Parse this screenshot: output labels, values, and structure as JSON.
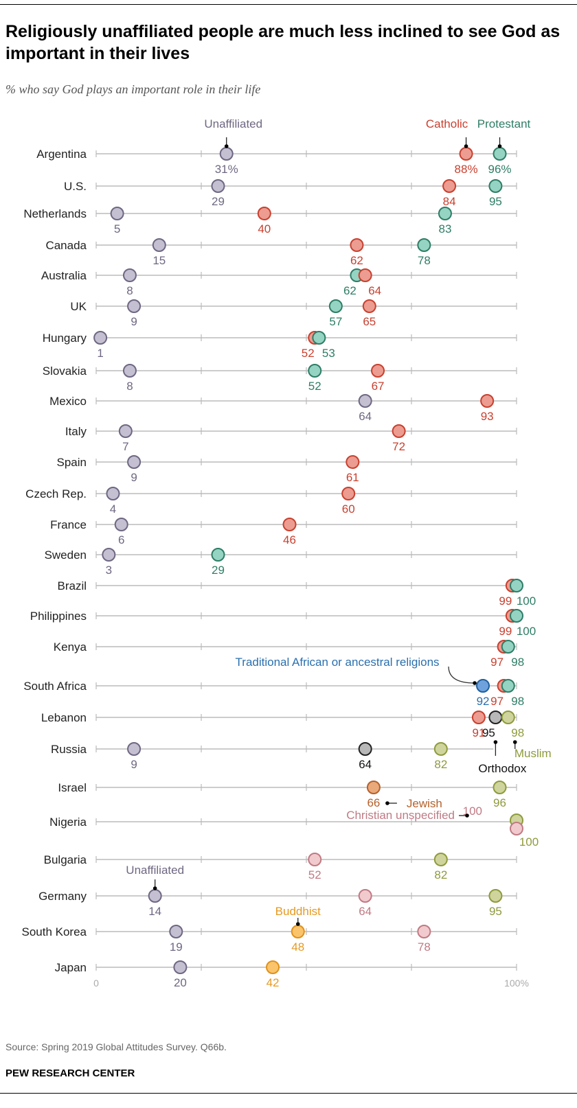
{
  "title": "Religiously unaffiliated people are much less inclined to see God as important in their lives",
  "subtitle": "% who say God plays an important role in their life",
  "source": "Source: Spring 2019 Global Attitudes Survey. Q66b.",
  "organization": "PEW RESEARCH CENTER",
  "chart_data": {
    "type": "scatter",
    "subtype": "dot-plot",
    "xlim": [
      0,
      100
    ],
    "tick_labels": [
      "0",
      "100%"
    ],
    "ticks": [
      0,
      25,
      50,
      75,
      100
    ],
    "grid": false,
    "series_styles": {
      "Unaffiliated": {
        "fill": "#c4bfd1",
        "stroke": "#6f6782",
        "text": "#6f6782"
      },
      "Catholic": {
        "fill": "#ec9c90",
        "stroke": "#c8402f",
        "text": "#c8402f"
      },
      "Protestant": {
        "fill": "#95d3c2",
        "stroke": "#2e7d66",
        "text": "#2e7d66"
      },
      "Traditional African or ancestral religions": {
        "fill": "#6fa2dc",
        "stroke": "#1f5f9e",
        "text": "#2a6fae"
      },
      "Orthodox": {
        "fill": "#b8b8b8",
        "stroke": "#222222",
        "text": "#111111"
      },
      "Muslim": {
        "fill": "#cfd49d",
        "stroke": "#8f9a3c",
        "text": "#8f9a3c"
      },
      "Jewish": {
        "fill": "#e9a97a",
        "stroke": "#b5612c",
        "text": "#b5612c"
      },
      "Christian unspecified": {
        "fill": "#f1cace",
        "stroke": "#c07a84",
        "text": "#c07a84"
      },
      "Buddhist": {
        "fill": "#f9c46c",
        "stroke": "#e0911a",
        "text": "#e69a22"
      }
    },
    "rows": [
      {
        "country": "Argentina",
        "points": [
          {
            "series": "Unaffiliated",
            "value": 31,
            "label": "31%"
          },
          {
            "series": "Catholic",
            "value": 88,
            "label": "88%"
          },
          {
            "series": "Protestant",
            "value": 96,
            "label": "96%"
          }
        ]
      },
      {
        "country": "U.S.",
        "points": [
          {
            "series": "Unaffiliated",
            "value": 29
          },
          {
            "series": "Catholic",
            "value": 84
          },
          {
            "series": "Protestant",
            "value": 95
          }
        ]
      },
      {
        "country": "Netherlands",
        "points": [
          {
            "series": "Unaffiliated",
            "value": 5
          },
          {
            "series": "Catholic",
            "value": 40
          },
          {
            "series": "Protestant",
            "value": 83
          }
        ]
      },
      {
        "country": "Canada",
        "points": [
          {
            "series": "Unaffiliated",
            "value": 15
          },
          {
            "series": "Catholic",
            "value": 62
          },
          {
            "series": "Protestant",
            "value": 78
          }
        ]
      },
      {
        "country": "Australia",
        "points": [
          {
            "series": "Unaffiliated",
            "value": 8
          },
          {
            "series": "Protestant",
            "value": 62
          },
          {
            "series": "Catholic",
            "value": 64
          }
        ]
      },
      {
        "country": "UK",
        "points": [
          {
            "series": "Unaffiliated",
            "value": 9
          },
          {
            "series": "Protestant",
            "value": 57
          },
          {
            "series": "Catholic",
            "value": 65
          }
        ]
      },
      {
        "country": "Hungary",
        "points": [
          {
            "series": "Unaffiliated",
            "value": 1
          },
          {
            "series": "Catholic",
            "value": 52
          },
          {
            "series": "Protestant",
            "value": 53
          }
        ]
      },
      {
        "country": "Slovakia",
        "points": [
          {
            "series": "Unaffiliated",
            "value": 8
          },
          {
            "series": "Protestant",
            "value": 52
          },
          {
            "series": "Catholic",
            "value": 67
          }
        ]
      },
      {
        "country": "Mexico",
        "points": [
          {
            "series": "Unaffiliated",
            "value": 64
          },
          {
            "series": "Catholic",
            "value": 93
          }
        ]
      },
      {
        "country": "Italy",
        "points": [
          {
            "series": "Unaffiliated",
            "value": 7
          },
          {
            "series": "Catholic",
            "value": 72
          }
        ]
      },
      {
        "country": "Spain",
        "points": [
          {
            "series": "Unaffiliated",
            "value": 9
          },
          {
            "series": "Catholic",
            "value": 61
          }
        ]
      },
      {
        "country": "Czech Rep.",
        "points": [
          {
            "series": "Unaffiliated",
            "value": 4
          },
          {
            "series": "Catholic",
            "value": 60
          }
        ]
      },
      {
        "country": "France",
        "points": [
          {
            "series": "Unaffiliated",
            "value": 6
          },
          {
            "series": "Catholic",
            "value": 46
          }
        ]
      },
      {
        "country": "Sweden",
        "points": [
          {
            "series": "Unaffiliated",
            "value": 3
          },
          {
            "series": "Protestant",
            "value": 29
          }
        ]
      },
      {
        "country": "Brazil",
        "points": [
          {
            "series": "Catholic",
            "value": 99
          },
          {
            "series": "Protestant",
            "value": 100
          }
        ]
      },
      {
        "country": "Philippines",
        "points": [
          {
            "series": "Catholic",
            "value": 99
          },
          {
            "series": "Protestant",
            "value": 100
          }
        ]
      },
      {
        "country": "Kenya",
        "points": [
          {
            "series": "Catholic",
            "value": 97
          },
          {
            "series": "Protestant",
            "value": 98
          }
        ]
      },
      {
        "country": "South Africa",
        "points": [
          {
            "series": "Traditional African or ancestral religions",
            "value": 92
          },
          {
            "series": "Catholic",
            "value": 97
          },
          {
            "series": "Protestant",
            "value": 98
          }
        ]
      },
      {
        "country": "Lebanon",
        "points": [
          {
            "series": "Catholic",
            "value": 91
          },
          {
            "series": "Orthodox",
            "value": 95
          },
          {
            "series": "Muslim",
            "value": 98
          }
        ]
      },
      {
        "country": "Russia",
        "points": [
          {
            "series": "Unaffiliated",
            "value": 9
          },
          {
            "series": "Orthodox",
            "value": 64
          },
          {
            "series": "Muslim",
            "value": 82
          }
        ]
      },
      {
        "country": "Israel",
        "points": [
          {
            "series": "Jewish",
            "value": 66
          },
          {
            "series": "Muslim",
            "value": 96
          }
        ]
      },
      {
        "country": "Nigeria",
        "points": [
          {
            "series": "Muslim",
            "value": 100
          },
          {
            "series": "Christian unspecified",
            "value": 100
          }
        ]
      },
      {
        "country": "Bulgaria",
        "points": [
          {
            "series": "Christian unspecified",
            "value": 52
          },
          {
            "series": "Muslim",
            "value": 82
          }
        ]
      },
      {
        "country": "Germany",
        "points": [
          {
            "series": "Unaffiliated",
            "value": 14
          },
          {
            "series": "Christian unspecified",
            "value": 64
          },
          {
            "series": "Muslim",
            "value": 95
          }
        ]
      },
      {
        "country": "South Korea",
        "points": [
          {
            "series": "Unaffiliated",
            "value": 19
          },
          {
            "series": "Buddhist",
            "value": 48
          },
          {
            "series": "Christian unspecified",
            "value": 78
          }
        ]
      },
      {
        "country": "Japan",
        "points": [
          {
            "series": "Unaffiliated",
            "value": 20
          },
          {
            "series": "Buddhist",
            "value": 42
          }
        ]
      }
    ],
    "annotations": [
      {
        "text": "Unaffiliated",
        "series": "Unaffiliated",
        "country": "Argentina"
      },
      {
        "text": "Catholic",
        "series": "Catholic",
        "country": "Argentina"
      },
      {
        "text": "Protestant",
        "series": "Protestant",
        "country": "Argentina"
      },
      {
        "text": "Traditional African or ancestral religions",
        "series": "Traditional African or ancestral religions",
        "country": "South Africa"
      },
      {
        "text": "Orthodox",
        "series": "Orthodox",
        "country": "Lebanon"
      },
      {
        "text": "Muslim",
        "series": "Muslim",
        "country": "Lebanon"
      },
      {
        "text": "Jewish",
        "series": "Jewish",
        "country": "Israel"
      },
      {
        "text": "Christian unspecified",
        "series": "Christian unspecified",
        "country": "Nigeria"
      },
      {
        "text": "Unaffiliated",
        "series": "Unaffiliated",
        "country": "Germany"
      },
      {
        "text": "Buddhist",
        "series": "Buddhist",
        "country": "South Korea"
      }
    ]
  }
}
